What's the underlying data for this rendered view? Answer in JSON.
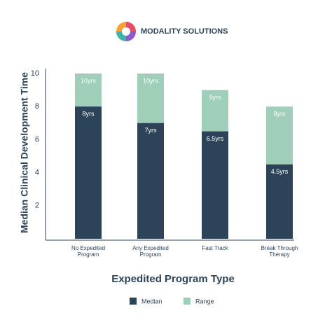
{
  "brand": "MODALITY SOLUTIONS",
  "chart_data": {
    "type": "bar",
    "y_label": "Median Clinical Development Time",
    "x_label": "Expedited Program Type",
    "categories": [
      "No Expedited Program",
      "Any Expedited Program",
      "Fast Track",
      "Break Through Therapy"
    ],
    "series": [
      {
        "name": "Median",
        "color": "#2c4359",
        "values": [
          8,
          7,
          6.5,
          4.5
        ],
        "value_labels": [
          "8yrs",
          "7yrs",
          "6.5yrs",
          "4.5yrs"
        ]
      },
      {
        "name": "Range",
        "color": "#9fcfb8",
        "values": [
          10,
          10,
          9,
          8
        ],
        "value_labels": [
          "10yrs",
          "10yrs",
          "9yrs",
          "8yrs"
        ]
      }
    ],
    "ylim": [
      0,
      10
    ],
    "yticks": [
      2,
      4,
      6,
      8,
      10
    ],
    "grid": false
  }
}
